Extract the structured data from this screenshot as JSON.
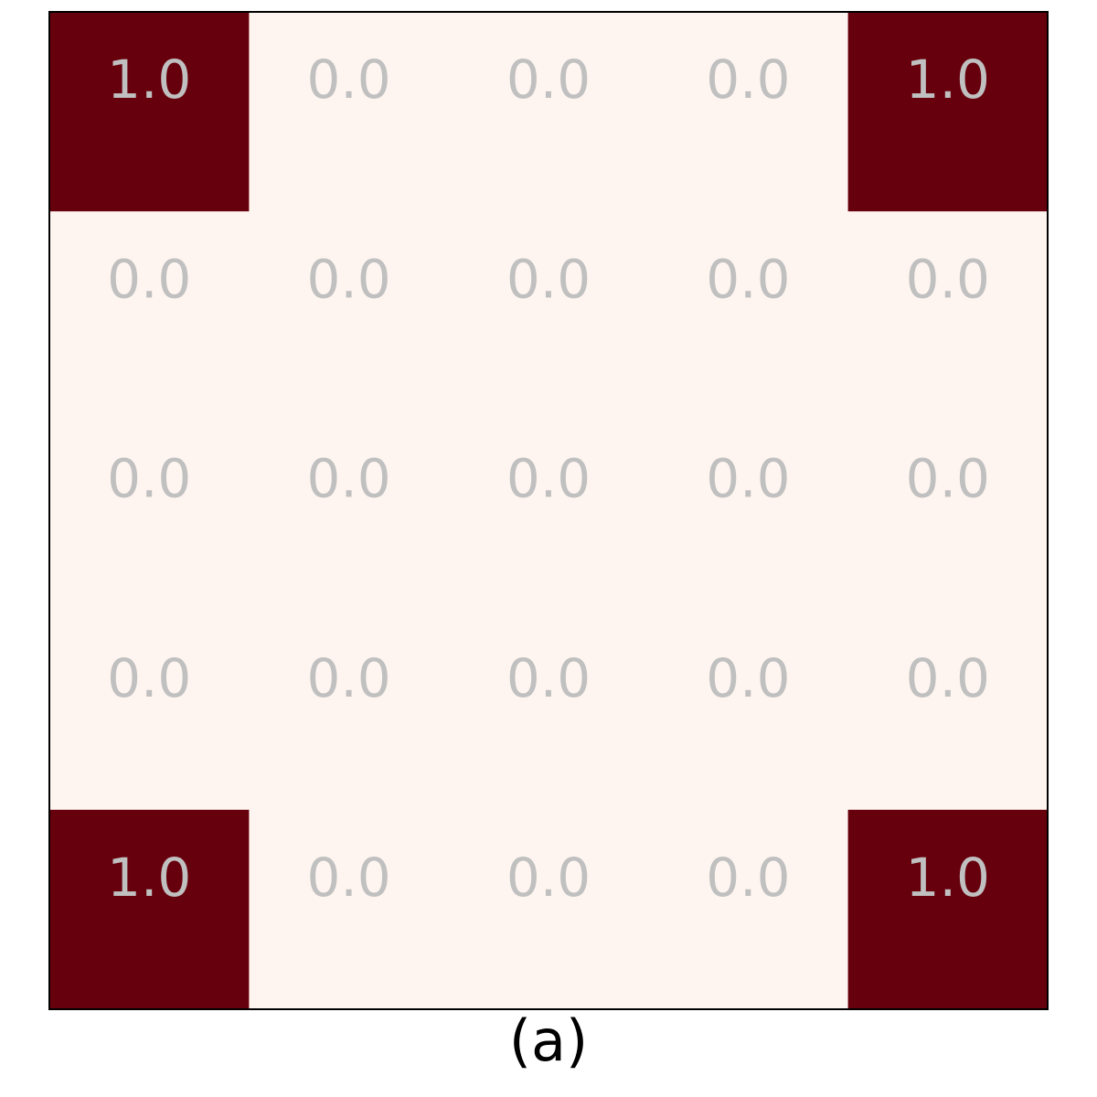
{
  "caption": "(a)",
  "chart_data": {
    "type": "heatmap",
    "rows": 5,
    "cols": 5,
    "values": [
      [
        1.0,
        0.0,
        0.0,
        0.0,
        1.0
      ],
      [
        0.0,
        0.0,
        0.0,
        0.0,
        0.0
      ],
      [
        0.0,
        0.0,
        0.0,
        0.0,
        0.0
      ],
      [
        0.0,
        0.0,
        0.0,
        0.0,
        0.0
      ],
      [
        1.0,
        0.0,
        0.0,
        0.0,
        1.0
      ]
    ],
    "value_format": "1 decimal",
    "range": [
      0.0,
      1.0
    ],
    "colors": {
      "low": "#fff5f0",
      "high": "#67000d",
      "label": "#c0c0c0",
      "border": "#000000"
    },
    "title": "",
    "xlabel": "",
    "ylabel": "",
    "grid": false
  }
}
